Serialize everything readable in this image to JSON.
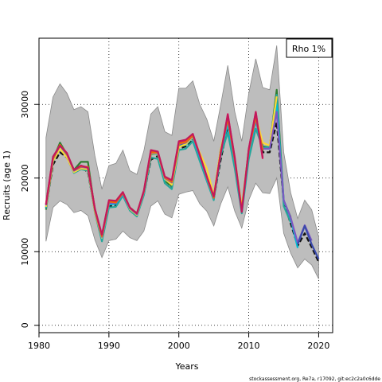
{
  "chart_data": {
    "type": "line",
    "xlabel": "Years",
    "ylabel": "Recruits (age 1)",
    "xlim": [
      1980,
      2022
    ],
    "ylim": [
      -1000,
      39000
    ],
    "xticks": [
      1980,
      1990,
      2000,
      2010,
      2020
    ],
    "yticks": [
      0,
      10000,
      20000,
      30000
    ],
    "grid": "dotted",
    "legend": {
      "placement": "top-right",
      "label": "Rho 1%"
    },
    "footer": "stockassessment.org, Re7a, r17092, git:ec2c2a0c6dde",
    "band": {
      "x": [
        1981,
        1982,
        1983,
        1984,
        1985,
        1986,
        1987,
        1988,
        1989,
        1990,
        1991,
        1992,
        1993,
        1994,
        1995,
        1996,
        1997,
        1998,
        1999,
        2000,
        2001,
        2002,
        2003,
        2004,
        2005,
        2006,
        2007,
        2008,
        2009,
        2010,
        2011,
        2012,
        2013,
        2014,
        2015,
        2016,
        2017,
        2018,
        2019,
        2020
      ],
      "upper": [
        25500,
        31000,
        32800,
        31500,
        29300,
        29700,
        29000,
        23000,
        18500,
        21700,
        22000,
        23800,
        21000,
        20500,
        23700,
        28700,
        29700,
        26300,
        25800,
        32200,
        32200,
        33200,
        30000,
        28000,
        25000,
        30000,
        35300,
        29000,
        25000,
        31500,
        36200,
        32300,
        32000,
        38000,
        23500,
        18000,
        14500,
        17000,
        15700,
        12000
      ],
      "lower": [
        11400,
        16000,
        16900,
        16400,
        15300,
        15600,
        14900,
        11600,
        9200,
        11500,
        11700,
        12800,
        11900,
        11500,
        12800,
        16200,
        16900,
        15100,
        14600,
        17800,
        18100,
        18300,
        16500,
        15500,
        13500,
        16500,
        18800,
        15500,
        13200,
        17000,
        19300,
        18000,
        17900,
        20000,
        12500,
        9800,
        7800,
        9000,
        8200,
        6300
      ]
    },
    "series": [
      {
        "color": "#111111",
        "values": [
          16000,
          21800,
          23500,
          22800,
          20800,
          21500,
          20800,
          15500,
          11700,
          16200,
          16300,
          17800,
          16000,
          15200,
          17800,
          22500,
          23000,
          19700,
          18800,
          24000,
          24300,
          25300,
          22500,
          20200,
          17200,
          22500,
          27000,
          21800,
          15500,
          23600,
          28300,
          23500,
          23500,
          27600,
          16700,
          13800,
          10800,
          12500,
          10600,
          8600
        ]
      },
      {
        "color": "#2e7d32",
        "values": [
          15700,
          22500,
          24800,
          23200,
          21100,
          22200,
          22200,
          15500,
          11600,
          16500,
          16600,
          18000,
          15700,
          14900,
          18100,
          23200,
          23300,
          19600,
          18900,
          24500,
          24700,
          25800,
          22800,
          19800,
          17300,
          23900,
          27600,
          22500,
          15900,
          23800,
          28400,
          24300,
          24200,
          32000,
          16900,
          14700,
          null,
          null,
          null,
          null
        ]
      },
      {
        "color": "#d81b60",
        "values": [
          16500,
          22800,
          24500,
          23300,
          21000,
          21600,
          21500,
          15800,
          12200,
          16900,
          16800,
          17900,
          15900,
          15100,
          18200,
          23700,
          23500,
          20100,
          19600,
          24900,
          25100,
          25900,
          23000,
          20100,
          17400,
          23200,
          28700,
          22700,
          15300,
          23900,
          29000,
          22600,
          null,
          null,
          null,
          null,
          null,
          null,
          null,
          null
        ]
      },
      {
        "color": "#26a69a",
        "values": [
          15900,
          22200,
          24200,
          22900,
          20700,
          21200,
          21000,
          15300,
          11400,
          16000,
          16100,
          17600,
          15600,
          14800,
          17700,
          22800,
          22600,
          19300,
          18500,
          23800,
          24000,
          25000,
          22300,
          19600,
          17000,
          23100,
          26200,
          21300,
          15200,
          22600,
          26700,
          24100,
          24300,
          31300,
          16200,
          14000,
          null,
          null,
          null,
          null
        ]
      },
      {
        "color": "#00bcd4",
        "values": [
          16200,
          22400,
          24300,
          23100,
          20900,
          21400,
          21300,
          15600,
          11800,
          16400,
          16500,
          17800,
          15800,
          15000,
          18000,
          23300,
          23200,
          19800,
          19200,
          24300,
          24500,
          25500,
          22800,
          19800,
          17200,
          23500,
          27300,
          22200,
          15500,
          23500,
          27700,
          24000,
          24000,
          30000,
          17000,
          14500,
          10500,
          null,
          null,
          null
        ]
      },
      {
        "color": "#fdd835",
        "values": [
          16100,
          22300,
          24000,
          22800,
          20800,
          21300,
          21200,
          15400,
          11900,
          16600,
          16900,
          18000,
          15800,
          15000,
          18100,
          23300,
          23300,
          19900,
          19100,
          24200,
          24600,
          25600,
          23400,
          21300,
          17700,
          23900,
          28200,
          22700,
          16000,
          23800,
          28400,
          24800,
          24400,
          31100,
          null,
          null,
          null,
          null,
          null,
          null
        ]
      },
      {
        "color": "#7e57c2",
        "values": [
          16300,
          22600,
          24400,
          23200,
          21000,
          21500,
          21400,
          15600,
          12000,
          16600,
          16600,
          17900,
          15900,
          15100,
          18100,
          23400,
          23400,
          20000,
          19400,
          24600,
          24800,
          25700,
          23000,
          20000,
          17300,
          23500,
          28000,
          22400,
          15600,
          23700,
          28000,
          24000,
          24000,
          29000,
          17000,
          14600,
          11200,
          13600,
          11500,
          null
        ]
      },
      {
        "color": "#ef6c00",
        "values": [
          16400,
          22700,
          24500,
          23300,
          21100,
          21600,
          21500,
          15700,
          12100,
          16800,
          16700,
          18000,
          16000,
          15200,
          18200,
          23500,
          23500,
          20100,
          19500,
          24700,
          24900,
          25800,
          23200,
          20100,
          17300,
          23600,
          28100,
          22500,
          15700,
          23800,
          28300,
          23800,
          null,
          null,
          null,
          null,
          null,
          null,
          null,
          null
        ]
      },
      {
        "color": "#3949ab",
        "values": [
          null,
          null,
          null,
          null,
          null,
          null,
          null,
          null,
          null,
          null,
          null,
          null,
          null,
          null,
          null,
          null,
          null,
          null,
          null,
          null,
          null,
          null,
          null,
          null,
          null,
          null,
          null,
          null,
          null,
          null,
          null,
          null,
          null,
          null,
          null,
          null,
          11000,
          13500,
          11000,
          9000
        ]
      },
      {
        "color": "#c2185b",
        "values": [
          16400,
          22900,
          24400,
          23400,
          21100,
          21700,
          21400,
          15800,
          12300,
          17000,
          16900,
          18100,
          16000,
          15200,
          18300,
          23800,
          23600,
          20200,
          19700,
          25000,
          25200,
          26000,
          23100,
          20200,
          17500,
          23400,
          28600,
          22800,
          15400,
          24000,
          28900,
          22800,
          null,
          null,
          null,
          null,
          null,
          null,
          null,
          null
        ]
      }
    ]
  }
}
